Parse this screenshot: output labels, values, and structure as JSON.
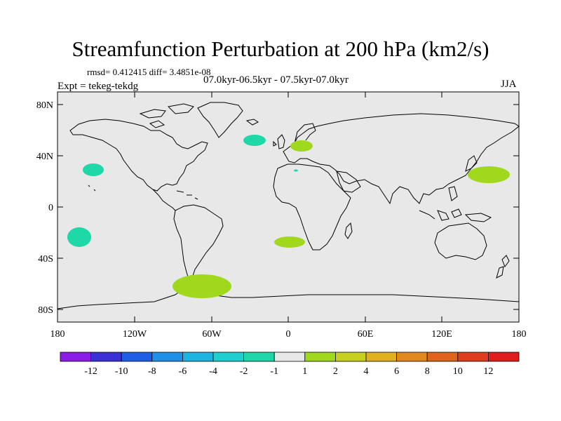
{
  "title": "Streamfunction Perturbation at 200 hPa (km2/s)",
  "stats": "rmsd= 0.412415 diff= 3.4851e-08",
  "period": "07.0kyr-06.5kyr - 07.5kyr-07.0kyr",
  "experiment": "Expt = tekeg-tekdg",
  "season": "JJA",
  "axes": {
    "lat_ticks": [
      "80N",
      "40N",
      "0",
      "40S",
      "80S"
    ],
    "lon_ticks": [
      "180",
      "120W",
      "60W",
      "0",
      "60E",
      "120E",
      "180"
    ]
  },
  "colorbar": {
    "labels": [
      "-12",
      "-10",
      "-8",
      "-6",
      "-4",
      "-2",
      "-1",
      "1",
      "2",
      "4",
      "6",
      "8",
      "10",
      "12"
    ],
    "colors": [
      "#8a1ee6",
      "#3b2fd6",
      "#1e5ee6",
      "#1e90e6",
      "#1eb4e0",
      "#1ecfd0",
      "#1ed8a8",
      "#e8e8e8",
      "#a0d81e",
      "#c8d01e",
      "#e0b01e",
      "#e08a1e",
      "#e0641e",
      "#e03c1e",
      "#e01e1e"
    ]
  },
  "map_colors": {
    "ocean_land_fill": "#e8e8e8",
    "negative_anomaly": "#1ed8a8",
    "positive_anomaly": "#a0d81e"
  }
}
